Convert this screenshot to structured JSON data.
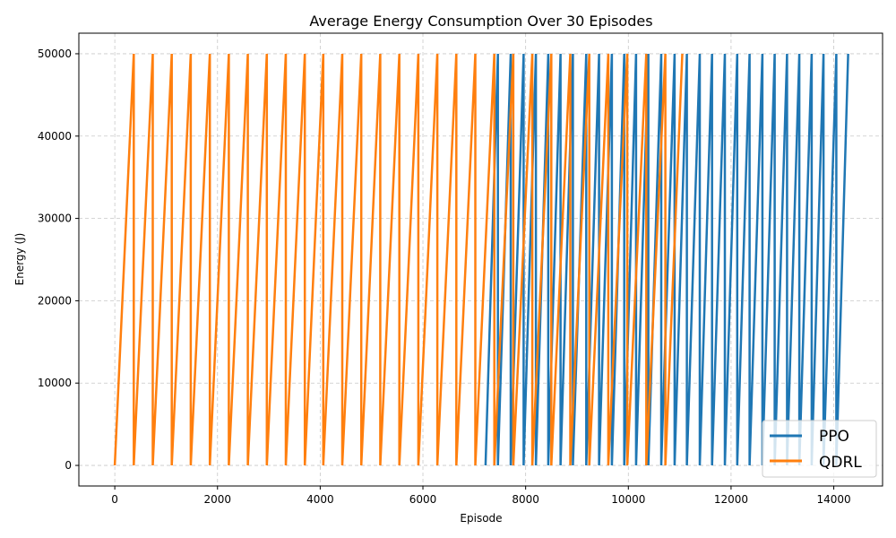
{
  "chart_data": {
    "type": "line",
    "title": "Average Energy Consumption Over 30 Episodes",
    "xlabel": "Episode",
    "ylabel": "Energy (J)",
    "xlim": [
      -700,
      14950
    ],
    "ylim": [
      -2500,
      52500
    ],
    "xticks": [
      0,
      2000,
      4000,
      6000,
      8000,
      10000,
      12000,
      14000
    ],
    "yticks": [
      0,
      10000,
      20000,
      30000,
      40000,
      50000
    ],
    "grid": true,
    "legend_position": "bottom-right",
    "series": [
      {
        "name": "PPO",
        "color": "#1f77b4",
        "cycle_starts": [
          7220,
          7460,
          7710,
          7960,
          8200,
          8440,
          8680,
          8920,
          9180,
          9430,
          9680,
          9920,
          10150,
          10390,
          10640,
          10900,
          11140,
          11390,
          11630,
          11880,
          12120,
          12360,
          12610,
          12850,
          13090,
          13330,
          13570,
          13800,
          14050
        ],
        "end": 14280,
        "low": 0,
        "high": 50000
      },
      {
        "name": "QDRL",
        "color": "#ff7f0e",
        "cycle_starts": [
          0,
          370,
          740,
          1110,
          1480,
          1850,
          2220,
          2590,
          2960,
          3330,
          3700,
          4060,
          4430,
          4800,
          5170,
          5540,
          5910,
          6280,
          6650,
          7020,
          7390,
          7760,
          8130,
          8500,
          8870,
          9240,
          9610,
          9980,
          10350,
          10720
        ],
        "end": 11050,
        "low": 0,
        "high": 50000
      }
    ]
  }
}
